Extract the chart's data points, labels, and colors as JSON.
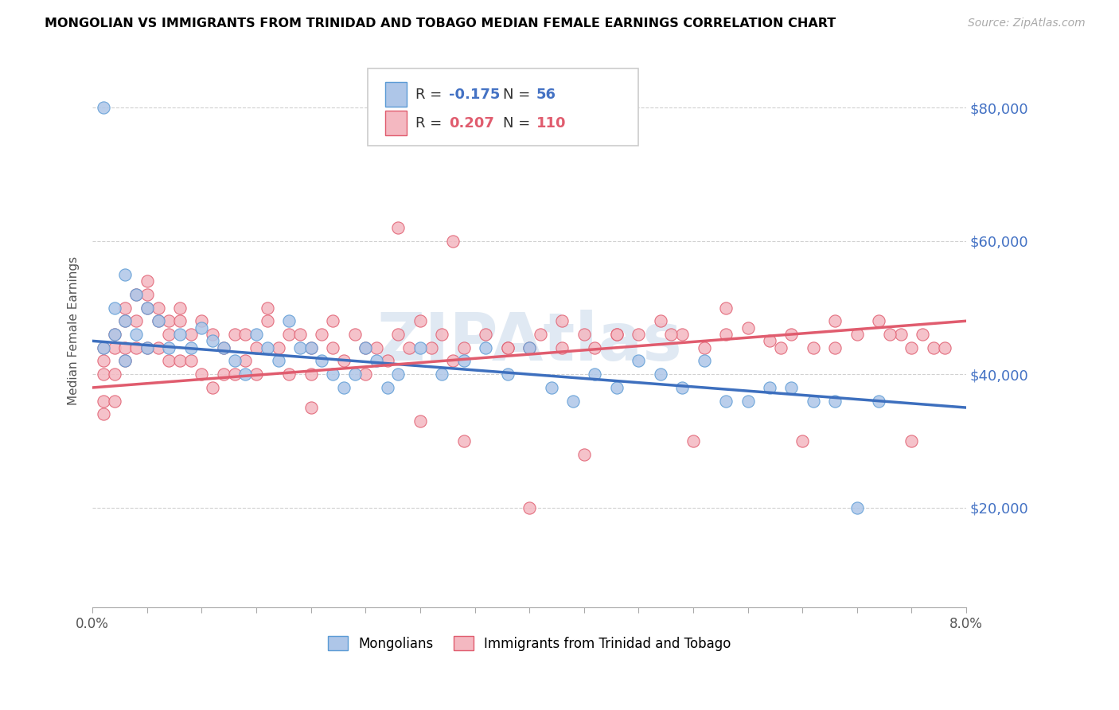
{
  "title": "MONGOLIAN VS IMMIGRANTS FROM TRINIDAD AND TOBAGO MEDIAN FEMALE EARNINGS CORRELATION CHART",
  "source": "Source: ZipAtlas.com",
  "ylabel": "Median Female Earnings",
  "y_ticks": [
    20000,
    40000,
    60000,
    80000
  ],
  "y_tick_labels": [
    "$20,000",
    "$40,000",
    "$60,000",
    "$80,000"
  ],
  "x_min": 0.0,
  "x_max": 0.08,
  "y_min": 5000,
  "y_max": 88000,
  "mongolian_color": "#aec6e8",
  "mongolian_edge": "#5b9bd5",
  "trinidad_color": "#f4b8c1",
  "trinidad_edge": "#e05c6e",
  "line_mongolian": "#3d6fbe",
  "line_trinidad": "#e05c6e",
  "legend_r_mongolian": "-0.175",
  "legend_n_mongolian": "56",
  "legend_r_trinidad": "0.207",
  "legend_n_trinidad": "110",
  "legend_label_mongolians": "Mongolians",
  "legend_label_trinidad": "Immigrants from Trinidad and Tobago",
  "watermark": "ZIPAtlas",
  "mon_line_x0": 0.0,
  "mon_line_x1": 0.08,
  "mon_line_y0": 45000,
  "mon_line_y1": 35000,
  "tri_line_x0": 0.0,
  "tri_line_x1": 0.08,
  "tri_line_y0": 38000,
  "tri_line_y1": 48000,
  "mongolian_x": [
    0.001,
    0.001,
    0.002,
    0.002,
    0.003,
    0.003,
    0.003,
    0.004,
    0.004,
    0.005,
    0.005,
    0.006,
    0.007,
    0.008,
    0.009,
    0.01,
    0.011,
    0.012,
    0.013,
    0.014,
    0.015,
    0.016,
    0.017,
    0.018,
    0.019,
    0.02,
    0.021,
    0.022,
    0.023,
    0.024,
    0.025,
    0.026,
    0.027,
    0.028,
    0.03,
    0.032,
    0.034,
    0.036,
    0.038,
    0.04,
    0.042,
    0.044,
    0.046,
    0.048,
    0.05,
    0.052,
    0.054,
    0.056,
    0.058,
    0.06,
    0.062,
    0.064,
    0.066,
    0.068,
    0.07,
    0.072
  ],
  "mongolian_y": [
    80000,
    44000,
    50000,
    46000,
    55000,
    48000,
    42000,
    52000,
    46000,
    50000,
    44000,
    48000,
    44000,
    46000,
    44000,
    47000,
    45000,
    44000,
    42000,
    40000,
    46000,
    44000,
    42000,
    48000,
    44000,
    44000,
    42000,
    40000,
    38000,
    40000,
    44000,
    42000,
    38000,
    40000,
    44000,
    40000,
    42000,
    44000,
    40000,
    44000,
    38000,
    36000,
    40000,
    38000,
    42000,
    40000,
    38000,
    42000,
    36000,
    36000,
    38000,
    38000,
    36000,
    36000,
    20000,
    36000
  ],
  "trinidad_x": [
    0.001,
    0.001,
    0.001,
    0.001,
    0.001,
    0.002,
    0.002,
    0.002,
    0.002,
    0.003,
    0.003,
    0.003,
    0.003,
    0.004,
    0.004,
    0.004,
    0.005,
    0.005,
    0.005,
    0.005,
    0.006,
    0.006,
    0.006,
    0.007,
    0.007,
    0.007,
    0.008,
    0.008,
    0.008,
    0.009,
    0.009,
    0.01,
    0.01,
    0.011,
    0.011,
    0.012,
    0.012,
    0.013,
    0.013,
    0.014,
    0.014,
    0.015,
    0.015,
    0.016,
    0.017,
    0.018,
    0.018,
    0.019,
    0.02,
    0.02,
    0.021,
    0.022,
    0.023,
    0.024,
    0.025,
    0.025,
    0.026,
    0.027,
    0.028,
    0.029,
    0.03,
    0.031,
    0.032,
    0.033,
    0.034,
    0.036,
    0.038,
    0.04,
    0.041,
    0.043,
    0.045,
    0.046,
    0.048,
    0.05,
    0.052,
    0.054,
    0.056,
    0.058,
    0.06,
    0.062,
    0.064,
    0.066,
    0.068,
    0.07,
    0.072,
    0.074,
    0.075,
    0.076,
    0.077,
    0.078,
    0.028,
    0.033,
    0.038,
    0.043,
    0.048,
    0.053,
    0.058,
    0.063,
    0.068,
    0.073,
    0.016,
    0.022,
    0.034,
    0.045,
    0.055,
    0.065,
    0.075,
    0.02,
    0.03,
    0.04
  ],
  "trinidad_y": [
    44000,
    42000,
    40000,
    36000,
    34000,
    46000,
    44000,
    40000,
    36000,
    50000,
    48000,
    44000,
    42000,
    52000,
    48000,
    44000,
    54000,
    52000,
    50000,
    44000,
    50000,
    48000,
    44000,
    48000,
    46000,
    42000,
    50000,
    48000,
    42000,
    46000,
    42000,
    48000,
    40000,
    46000,
    38000,
    44000,
    40000,
    46000,
    40000,
    46000,
    42000,
    44000,
    40000,
    48000,
    44000,
    46000,
    40000,
    46000,
    44000,
    40000,
    46000,
    44000,
    42000,
    46000,
    44000,
    40000,
    44000,
    42000,
    46000,
    44000,
    48000,
    44000,
    46000,
    42000,
    44000,
    46000,
    44000,
    44000,
    46000,
    44000,
    46000,
    44000,
    46000,
    46000,
    48000,
    46000,
    44000,
    46000,
    47000,
    45000,
    46000,
    44000,
    44000,
    46000,
    48000,
    46000,
    44000,
    46000,
    44000,
    44000,
    62000,
    60000,
    44000,
    48000,
    46000,
    46000,
    50000,
    44000,
    48000,
    46000,
    50000,
    48000,
    30000,
    28000,
    30000,
    30000,
    30000,
    35000,
    33000,
    20000
  ]
}
